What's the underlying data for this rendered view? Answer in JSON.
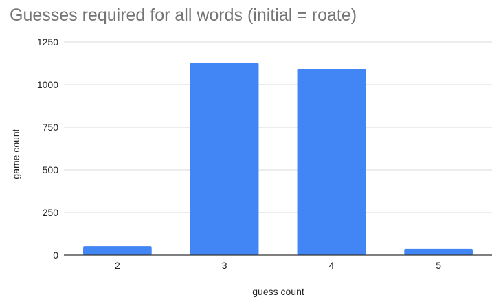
{
  "chart_data": {
    "type": "bar",
    "title": "Guesses required for all words (initial = roate)",
    "xlabel": "guess count",
    "ylabel": "game count",
    "categories": [
      "2",
      "3",
      "4",
      "5"
    ],
    "values": [
      52,
      1127,
      1092,
      37
    ],
    "ylim": [
      0,
      1250
    ],
    "yticks": [
      "0",
      "250",
      "500",
      "750",
      "1000",
      "1250"
    ],
    "grid": true,
    "legend": "none",
    "bar_color": "#4285f4",
    "grid_color": "#d9d9d9",
    "axis_color": "#333333"
  }
}
